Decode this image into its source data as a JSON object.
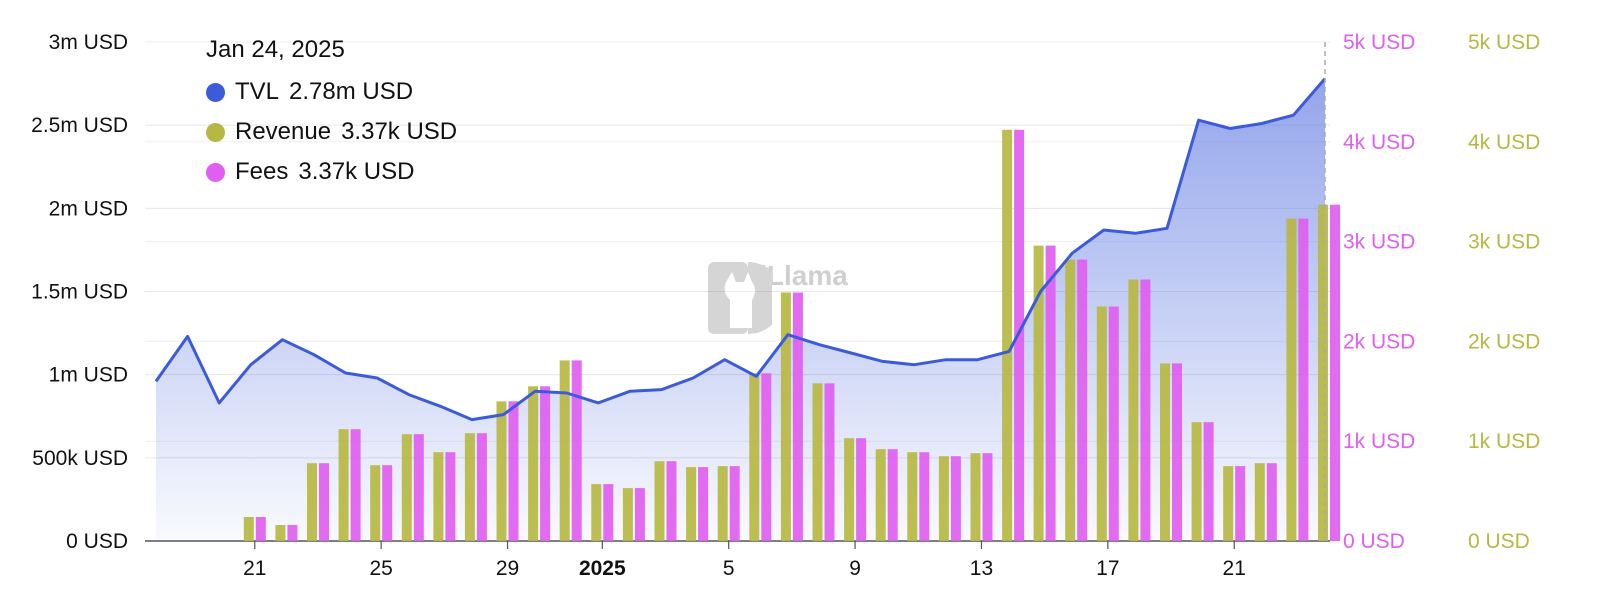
{
  "legend": {
    "date": "Jan 24, 2025",
    "tvl_label": "TVL",
    "tvl_value": "2.78m USD",
    "revenue_label": "Revenue",
    "revenue_value": "3.37k USD",
    "fees_label": "Fees",
    "fees_value": "3.37k USD"
  },
  "watermark": {
    "text": "DefiLlama"
  },
  "colors": {
    "tvl": "#3b5bdb",
    "revenue": "#b7b842",
    "fees": "#e05ef0",
    "grid": "#e6e6e6",
    "axis_text": "#111111"
  },
  "chart_data": {
    "type": "bar",
    "x_ticks": [
      {
        "index": 3,
        "label": "21"
      },
      {
        "index": 7,
        "label": "25"
      },
      {
        "index": 11,
        "label": "29"
      },
      {
        "index": 14,
        "label": "2025"
      },
      {
        "index": 18,
        "label": "5"
      },
      {
        "index": 22,
        "label": "9"
      },
      {
        "index": 26,
        "label": "13"
      },
      {
        "index": 30,
        "label": "17"
      },
      {
        "index": 34,
        "label": "21"
      }
    ],
    "left_axis": {
      "ticks": [
        "0 USD",
        "500k USD",
        "1m USD",
        "1.5m USD",
        "2m USD",
        "2.5m USD",
        "3m USD"
      ],
      "range": [
        0,
        3000000
      ]
    },
    "right_axis_fees": {
      "ticks": [
        "0 USD",
        "1k USD",
        "2k USD",
        "3k USD",
        "4k USD",
        "5k USD"
      ],
      "range": [
        0,
        5000
      ]
    },
    "right_axis_revenue": {
      "ticks": [
        "0 USD",
        "1k USD",
        "2k USD",
        "3k USD",
        "4k USD",
        "5k USD"
      ],
      "range": [
        0,
        5000
      ]
    },
    "series": [
      {
        "name": "TVL",
        "type": "area",
        "axis": "left",
        "values": [
          960000,
          1230000,
          830000,
          1060000,
          1210000,
          1120000,
          1010000,
          980000,
          880000,
          810000,
          730000,
          760000,
          900000,
          890000,
          830000,
          900000,
          910000,
          980000,
          1090000,
          990000,
          1240000,
          1180000,
          1130000,
          1080000,
          1060000,
          1090000,
          1090000,
          1140000,
          1500000,
          1730000,
          1870000,
          1850000,
          1880000,
          2530000,
          2480000,
          2510000,
          2560000,
          2780000
        ]
      },
      {
        "name": "Revenue",
        "type": "bar",
        "axis": "right_revenue",
        "values": [
          null,
          null,
          null,
          240,
          160,
          780,
          1120,
          760,
          1070,
          890,
          1080,
          1400,
          1550,
          1810,
          570,
          530,
          800,
          740,
          750,
          1680,
          2490,
          1580,
          1030,
          920,
          890,
          850,
          880,
          4120,
          2960,
          2820,
          2350,
          2620,
          1780,
          1190,
          750,
          780,
          3230,
          3370
        ]
      },
      {
        "name": "Fees",
        "type": "bar",
        "axis": "right_fees",
        "values": [
          null,
          null,
          null,
          240,
          160,
          780,
          1120,
          760,
          1070,
          890,
          1080,
          1400,
          1550,
          1810,
          570,
          530,
          800,
          740,
          750,
          1680,
          2490,
          1580,
          1030,
          920,
          890,
          850,
          880,
          4120,
          2960,
          2820,
          2350,
          2620,
          1780,
          1190,
          750,
          780,
          3230,
          3370
        ]
      }
    ]
  }
}
